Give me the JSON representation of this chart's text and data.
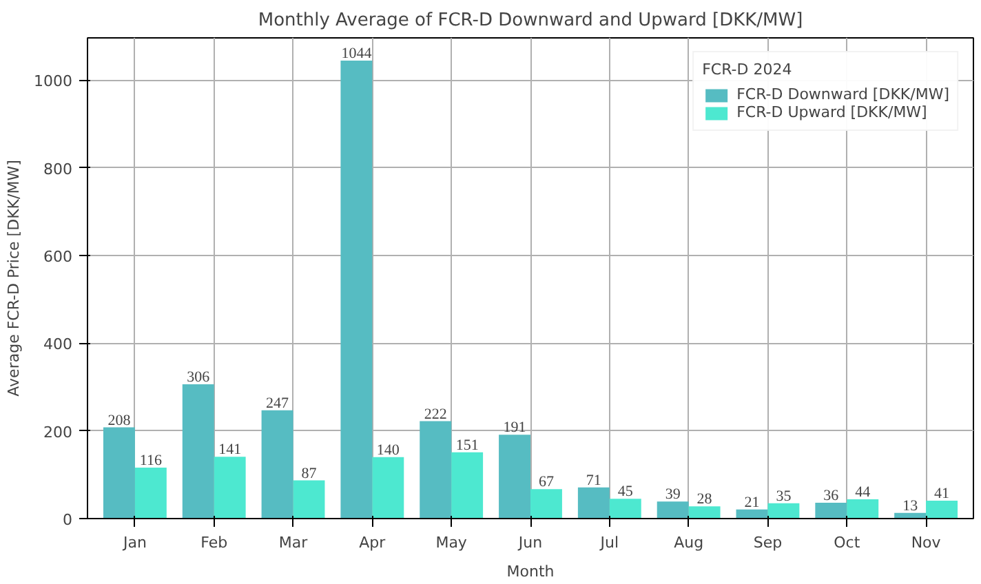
{
  "chart_data": {
    "type": "bar",
    "title": "Monthly Average of FCR-D Downward and Upward [DKK/MW]",
    "xlabel": "Month",
    "ylabel": "Average FCR-D Price [DKK/MW]",
    "legend_title": "FCR-D 2024",
    "categories": [
      "Jan",
      "Feb",
      "Mar",
      "Apr",
      "May",
      "Jun",
      "Jul",
      "Aug",
      "Sep",
      "Oct",
      "Nov"
    ],
    "series": [
      {
        "name": "FCR-D Downward [DKK/MW]",
        "color": "#56bcc2",
        "values": [
          208,
          306,
          247,
          1044,
          222,
          191,
          71,
          39,
          21,
          36,
          13
        ]
      },
      {
        "name": "FCR-D Upward [DKK/MW]",
        "color": "#4de8d0",
        "values": [
          116,
          141,
          87,
          140,
          151,
          67,
          45,
          28,
          35,
          44,
          41
        ]
      }
    ],
    "ylim": [
      0,
      1096
    ],
    "yticks": [
      0,
      200,
      400,
      600,
      800,
      1000
    ],
    "grid": true,
    "legend": "top right",
    "data_labels": true
  }
}
